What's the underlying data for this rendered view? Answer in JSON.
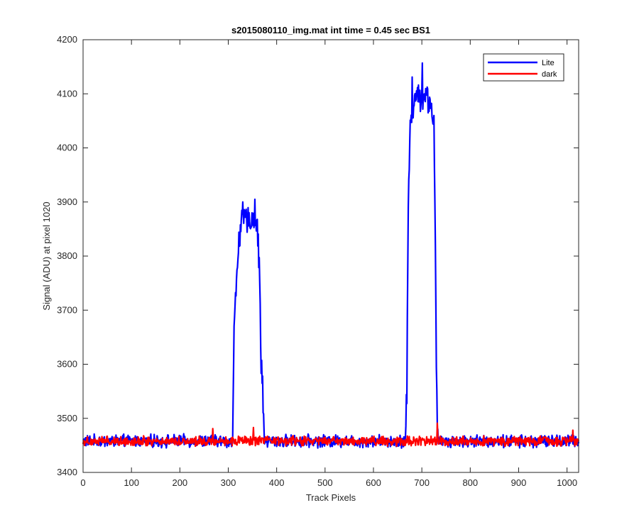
{
  "chart_data": {
    "type": "line",
    "title": "s2015080110_img.mat int time = 0.45 sec   BS1",
    "xlabel": "Track Pixels",
    "ylabel": "Signal (ADU) at pixel 1020",
    "xlim": [
      0,
      1024
    ],
    "ylim": [
      3400,
      4200
    ],
    "xticks": [
      0,
      100,
      200,
      300,
      400,
      500,
      600,
      700,
      800,
      900,
      1000
    ],
    "yticks": [
      3400,
      3500,
      3600,
      3700,
      3800,
      3900,
      4000,
      4100,
      4200
    ],
    "grid": false,
    "legend_position": "top-right",
    "series": [
      {
        "name": "Lite",
        "color": "#0000ff",
        "baseline": 3458,
        "noise": 9,
        "segments": [
          {
            "x": [
              0,
              309
            ],
            "y": [
              3458,
              3458
            ]
          },
          {
            "x": [
              309,
              312,
              318,
              322,
              328,
              335,
              340,
              345,
              350,
              356,
              360,
              365,
              368,
              371,
              373,
              375
            ],
            "y": [
              3458,
              3660,
              3775,
              3835,
              3860,
              3870,
              3862,
              3868,
              3870,
              3865,
              3855,
              3760,
              3600,
              3560,
              3500,
              3458
            ]
          },
          {
            "x": [
              375,
              666
            ],
            "y": [
              3458,
              3458
            ]
          },
          {
            "x": [
              666,
              669,
              672,
              676,
              680,
              685,
              690,
              695,
              700,
              705,
              710,
              715,
              720,
              725,
              728,
              730,
              732,
              734
            ],
            "y": [
              3458,
              3550,
              3900,
              4040,
              4060,
              4095,
              4100,
              4090,
              4095,
              4100,
              4095,
              4085,
              4075,
              4050,
              3800,
              3600,
              3480,
              3458
            ]
          },
          {
            "x": [
              734,
              1024
            ],
            "y": [
              3458,
              3458
            ]
          }
        ],
        "plateau_noise": 20,
        "peaks": [
          {
            "x": 330,
            "y": 3900
          },
          {
            "x": 355,
            "y": 3905
          },
          {
            "x": 701,
            "y": 4157
          },
          {
            "x": 680,
            "y": 4131
          }
        ]
      },
      {
        "name": "dark",
        "color": "#ff0000",
        "baseline": 3458,
        "noise": 7,
        "segments": [
          {
            "x": [
              0,
              1024
            ],
            "y": [
              3458,
              3458
            ]
          }
        ],
        "peaks": [
          {
            "x": 268,
            "y": 3481
          },
          {
            "x": 352,
            "y": 3483
          },
          {
            "x": 732,
            "y": 3491
          },
          {
            "x": 1012,
            "y": 3478
          }
        ]
      }
    ]
  }
}
